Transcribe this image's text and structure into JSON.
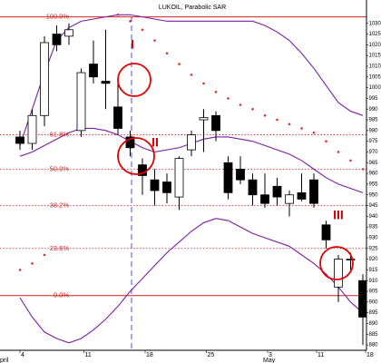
{
  "chart_data": {
    "type": "candlestick",
    "title": "LUKOIL, Parabolic SAR",
    "categories": [
      "4",
      null,
      null,
      null,
      null,
      "11",
      null,
      null,
      null,
      null,
      "18",
      null,
      null,
      null,
      null,
      "25",
      null,
      null,
      null,
      null,
      "3",
      null,
      null,
      null,
      "11",
      null,
      null,
      null,
      "18"
    ],
    "month_categories": [
      "pril",
      null,
      null,
      null,
      null,
      null,
      null,
      null,
      null,
      null,
      null,
      null,
      null,
      null,
      null,
      null,
      null,
      null,
      null,
      null,
      "May",
      null,
      null,
      null,
      null,
      null,
      null,
      null,
      null
    ],
    "open": [
      977,
      974,
      987,
      1025,
      1024,
      980,
      1011,
      1003,
      991,
      977,
      964,
      957,
      956,
      949,
      971,
      985,
      987,
      965,
      962,
      957,
      950,
      954,
      946,
      951,
      957,
      936,
      907,
      920,
      910
    ],
    "high": [
      980,
      990,
      1024,
      1029,
      1030,
      1009,
      1022,
      1027,
      1004,
      980,
      967,
      962,
      960,
      968,
      980,
      990,
      989,
      968,
      968,
      960,
      960,
      958,
      952,
      960,
      960,
      938,
      922,
      923,
      913
    ],
    "low": [
      971,
      971,
      982,
      1017,
      1020,
      977,
      1002,
      990,
      978,
      968,
      950,
      945,
      946,
      943,
      968,
      970,
      975,
      948,
      955,
      945,
      944,
      945,
      940,
      947,
      944,
      925,
      900,
      915,
      880
    ],
    "close": [
      974,
      987,
      1021,
      1020,
      1027,
      1007,
      1005,
      1002,
      981,
      972,
      959,
      952,
      951,
      967,
      978,
      986,
      980,
      951,
      957,
      950,
      946,
      949,
      950,
      948,
      946,
      929,
      920,
      920,
      893
    ],
    "up_color": "#ffffff",
    "down_color": "#000000",
    "bands": [
      {
        "color": "#7a1fa2",
        "values": [
          973,
          990,
          1007,
          1022,
          1028,
          1031,
          1032,
          1033,
          1034,
          1034,
          1033,
          1032,
          1031,
          1031,
          1031,
          1031,
          1031,
          1031,
          1031,
          1031,
          1029,
          1026,
          1022,
          1016,
          1009,
          1001,
          993,
          989,
          987
        ]
      },
      {
        "color": "#7a1fa2",
        "values": [
          968,
          970,
          973,
          976,
          979,
          981,
          981,
          980,
          978,
          975,
          972,
          970,
          971,
          972,
          974,
          976,
          977,
          977,
          976,
          975,
          973,
          971,
          969,
          966,
          962,
          958,
          955,
          953,
          951
        ]
      },
      {
        "color": "#7a1fa2",
        "values": [
          902,
          893,
          886,
          883,
          881,
          883,
          887,
          892,
          898,
          905,
          911,
          917,
          923,
          928,
          933,
          937,
          939,
          938,
          935,
          932,
          930,
          928,
          926,
          922,
          918,
          913,
          907,
          900,
          895
        ]
      }
    ],
    "sar": {
      "color": "#e03030",
      "values": [
        915,
        918,
        922,
        null,
        null,
        null,
        null,
        null,
        1034,
        1031,
        1027,
        1022,
        1016,
        1011,
        1006,
        1002,
        998,
        995,
        992,
        990,
        987,
        985,
        983,
        981,
        979,
        975,
        970,
        966,
        962
      ]
    },
    "fib_levels": [
      {
        "value": 1033,
        "label": "100.0%"
      },
      {
        "value": 978,
        "label": "61.8%"
      },
      {
        "value": 962,
        "label": "50.0%"
      },
      {
        "value": 945,
        "label": "38.2%"
      },
      {
        "value": 925,
        "label": "23.6%"
      },
      {
        "value": 903,
        "label": "0.0%"
      }
    ],
    "fib_color": "#d02020",
    "annotations": [
      "I",
      "II",
      "III"
    ],
    "ylim": [
      877.5,
      1037.5
    ],
    "yticks": [
      880,
      885,
      890,
      895,
      900,
      905,
      910,
      915,
      920,
      925,
      930,
      935,
      940,
      945,
      950,
      955,
      960,
      965,
      970,
      975,
      980,
      985,
      990,
      995,
      1000,
      1005,
      1010,
      1015,
      1020,
      1025,
      1030
    ]
  }
}
